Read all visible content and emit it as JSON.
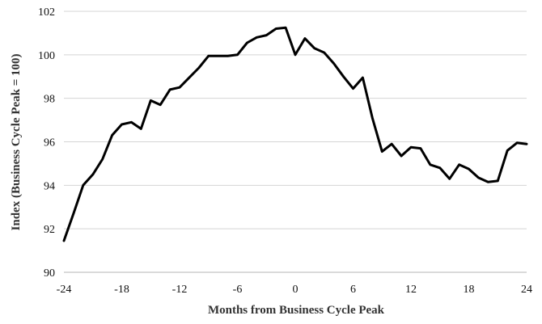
{
  "chart_data": {
    "type": "line",
    "title": "",
    "xlabel": "Months from Business Cycle Peak",
    "ylabel": "Index (Business Cycle Peak = 100)",
    "xlim": [
      -24,
      24
    ],
    "ylim": [
      90,
      102
    ],
    "xticks": [
      -24,
      -18,
      -12,
      -6,
      0,
      6,
      12,
      18,
      24
    ],
    "yticks": [
      90,
      92,
      94,
      96,
      98,
      100,
      102
    ],
    "grid": "horizontal",
    "legend": "none",
    "colors": {
      "line": "#000000",
      "grid": "#d4d4d4"
    },
    "series": [
      {
        "x": [
          -24,
          -23,
          -22,
          -21,
          -20,
          -19,
          -18,
          -17,
          -16,
          -15,
          -14,
          -13,
          -12,
          -11,
          -10,
          -9,
          -8,
          -7,
          -6,
          -5,
          -4,
          -3,
          -2,
          -1,
          0,
          1,
          2,
          3,
          4,
          5,
          6,
          7,
          8,
          9,
          10,
          11,
          12,
          13,
          14,
          15,
          16,
          17,
          18,
          19,
          20,
          21,
          22,
          23,
          24
        ],
        "values": [
          91.45,
          92.7,
          94.0,
          94.5,
          95.2,
          96.3,
          96.8,
          96.9,
          96.6,
          97.9,
          97.7,
          98.4,
          98.5,
          98.95,
          99.4,
          99.95,
          99.95,
          99.95,
          100.0,
          100.55,
          100.8,
          100.9,
          101.2,
          101.25,
          100.0,
          100.75,
          100.3,
          100.1,
          99.6,
          99.0,
          98.45,
          98.95,
          97.1,
          95.55,
          95.9,
          95.35,
          95.75,
          95.7,
          94.95,
          94.8,
          94.3,
          94.95,
          94.75,
          94.35,
          94.15,
          94.2,
          95.6,
          95.95,
          95.9
        ]
      }
    ]
  }
}
